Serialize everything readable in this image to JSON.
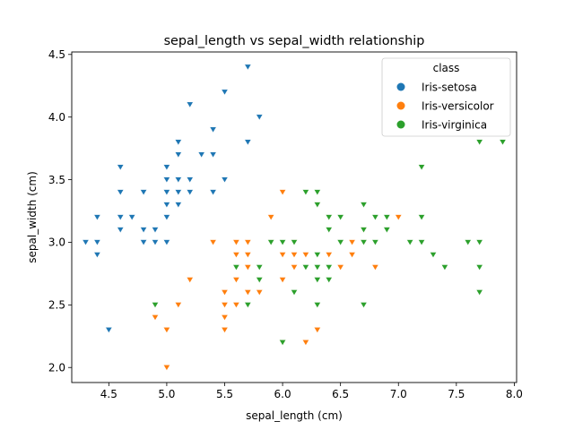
{
  "chart_data": {
    "type": "scatter",
    "title": "sepal_length vs sepal_width relationship",
    "xlabel": "sepal_length (cm)",
    "ylabel": "sepal_width (cm)",
    "xlim": [
      4.18,
      8.02
    ],
    "ylim": [
      1.88,
      4.52
    ],
    "xticks": [
      "4.5",
      "5.0",
      "5.5",
      "6.0",
      "6.5",
      "7.0",
      "7.5",
      "8.0"
    ],
    "yticks": [
      "2.0",
      "2.5",
      "3.0",
      "3.5",
      "4.0",
      "4.5"
    ],
    "grid": false,
    "legend": {
      "title": "class",
      "position": "top-right"
    },
    "series": [
      {
        "name": "Iris-setosa",
        "color": "#1f77b4",
        "marker": "triangle-down",
        "points": [
          [
            5.1,
            3.5
          ],
          [
            4.9,
            3.0
          ],
          [
            4.7,
            3.2
          ],
          [
            4.6,
            3.1
          ],
          [
            5.0,
            3.6
          ],
          [
            5.4,
            3.9
          ],
          [
            4.6,
            3.4
          ],
          [
            5.0,
            3.4
          ],
          [
            4.4,
            2.9
          ],
          [
            4.9,
            3.1
          ],
          [
            5.4,
            3.7
          ],
          [
            4.8,
            3.4
          ],
          [
            4.8,
            3.0
          ],
          [
            4.3,
            3.0
          ],
          [
            5.8,
            4.0
          ],
          [
            5.7,
            4.4
          ],
          [
            5.4,
            3.9
          ],
          [
            5.1,
            3.5
          ],
          [
            5.7,
            3.8
          ],
          [
            5.1,
            3.8
          ],
          [
            5.4,
            3.4
          ],
          [
            5.1,
            3.7
          ],
          [
            4.6,
            3.6
          ],
          [
            5.1,
            3.3
          ],
          [
            4.8,
            3.4
          ],
          [
            5.0,
            3.0
          ],
          [
            5.0,
            3.4
          ],
          [
            5.2,
            3.5
          ],
          [
            5.2,
            3.4
          ],
          [
            4.7,
            3.2
          ],
          [
            4.8,
            3.1
          ],
          [
            5.4,
            3.4
          ],
          [
            5.2,
            4.1
          ],
          [
            5.5,
            4.2
          ],
          [
            4.9,
            3.1
          ],
          [
            5.0,
            3.2
          ],
          [
            5.5,
            3.5
          ],
          [
            4.9,
            3.1
          ],
          [
            4.4,
            3.0
          ],
          [
            5.1,
            3.4
          ],
          [
            5.0,
            3.5
          ],
          [
            4.5,
            2.3
          ],
          [
            4.4,
            3.2
          ],
          [
            5.0,
            3.5
          ],
          [
            5.1,
            3.8
          ],
          [
            4.8,
            3.0
          ],
          [
            5.1,
            3.8
          ],
          [
            4.6,
            3.2
          ],
          [
            5.3,
            3.7
          ],
          [
            5.0,
            3.3
          ]
        ]
      },
      {
        "name": "Iris-versicolor",
        "color": "#ff7f0e",
        "marker": "triangle-down",
        "points": [
          [
            7.0,
            3.2
          ],
          [
            6.4,
            3.2
          ],
          [
            6.9,
            3.1
          ],
          [
            5.5,
            2.3
          ],
          [
            6.5,
            2.8
          ],
          [
            5.7,
            2.8
          ],
          [
            6.3,
            3.3
          ],
          [
            4.9,
            2.4
          ],
          [
            6.6,
            2.9
          ],
          [
            5.2,
            2.7
          ],
          [
            5.0,
            2.0
          ],
          [
            5.9,
            3.0
          ],
          [
            6.0,
            2.2
          ],
          [
            6.1,
            2.9
          ],
          [
            5.6,
            2.9
          ],
          [
            6.7,
            3.1
          ],
          [
            5.6,
            3.0
          ],
          [
            5.8,
            2.7
          ],
          [
            6.2,
            2.2
          ],
          [
            5.6,
            2.5
          ],
          [
            5.9,
            3.2
          ],
          [
            6.1,
            2.8
          ],
          [
            6.3,
            2.5
          ],
          [
            6.1,
            2.8
          ],
          [
            6.4,
            2.9
          ],
          [
            6.6,
            3.0
          ],
          [
            6.8,
            2.8
          ],
          [
            6.7,
            3.0
          ],
          [
            6.0,
            2.9
          ],
          [
            5.7,
            2.6
          ],
          [
            5.5,
            2.4
          ],
          [
            5.5,
            2.4
          ],
          [
            5.8,
            2.7
          ],
          [
            6.0,
            2.7
          ],
          [
            5.4,
            3.0
          ],
          [
            6.0,
            3.4
          ],
          [
            6.7,
            3.1
          ],
          [
            6.3,
            2.3
          ],
          [
            5.6,
            3.0
          ],
          [
            5.5,
            2.5
          ],
          [
            5.5,
            2.6
          ],
          [
            6.1,
            3.0
          ],
          [
            5.8,
            2.6
          ],
          [
            5.0,
            2.3
          ],
          [
            5.6,
            2.7
          ],
          [
            5.7,
            3.0
          ],
          [
            5.7,
            2.9
          ],
          [
            6.2,
            2.9
          ],
          [
            5.1,
            2.5
          ],
          [
            5.7,
            2.8
          ]
        ]
      },
      {
        "name": "Iris-virginica",
        "color": "#2ca02c",
        "marker": "triangle-down",
        "points": [
          [
            6.3,
            3.3
          ],
          [
            5.8,
            2.7
          ],
          [
            7.1,
            3.0
          ],
          [
            6.3,
            2.9
          ],
          [
            6.5,
            3.0
          ],
          [
            7.6,
            3.0
          ],
          [
            4.9,
            2.5
          ],
          [
            7.3,
            2.9
          ],
          [
            6.7,
            2.5
          ],
          [
            7.2,
            3.6
          ],
          [
            6.5,
            3.2
          ],
          [
            6.4,
            2.7
          ],
          [
            6.8,
            3.0
          ],
          [
            5.7,
            2.5
          ],
          [
            5.8,
            2.8
          ],
          [
            6.4,
            3.2
          ],
          [
            6.5,
            3.0
          ],
          [
            7.7,
            3.8
          ],
          [
            7.7,
            2.6
          ],
          [
            6.0,
            2.2
          ],
          [
            6.9,
            3.2
          ],
          [
            5.6,
            2.8
          ],
          [
            7.7,
            2.8
          ],
          [
            6.3,
            2.7
          ],
          [
            6.7,
            3.3
          ],
          [
            7.2,
            3.2
          ],
          [
            6.2,
            2.8
          ],
          [
            6.1,
            3.0
          ],
          [
            6.4,
            2.8
          ],
          [
            7.2,
            3.0
          ],
          [
            7.4,
            2.8
          ],
          [
            7.9,
            3.8
          ],
          [
            6.4,
            2.8
          ],
          [
            6.3,
            2.8
          ],
          [
            6.1,
            2.6
          ],
          [
            7.7,
            3.0
          ],
          [
            6.3,
            3.4
          ],
          [
            6.4,
            3.1
          ],
          [
            6.0,
            3.0
          ],
          [
            6.9,
            3.1
          ],
          [
            6.7,
            3.1
          ],
          [
            6.9,
            3.1
          ],
          [
            5.8,
            2.7
          ],
          [
            6.8,
            3.2
          ],
          [
            6.7,
            3.3
          ],
          [
            6.7,
            3.0
          ],
          [
            6.3,
            2.5
          ],
          [
            6.5,
            3.0
          ],
          [
            6.2,
            3.4
          ],
          [
            5.9,
            3.0
          ]
        ]
      }
    ]
  }
}
